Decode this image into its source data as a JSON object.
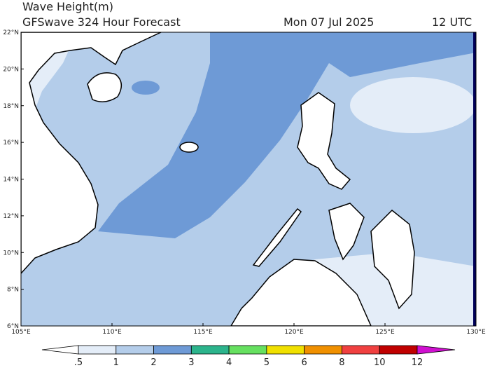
{
  "header": {
    "title": "Wave Height(m)",
    "subtitle": "GFSwave 324 Hour Forecast",
    "date": "Mon 07 Jul 2025",
    "time": "12 UTC"
  },
  "map": {
    "lat_labels": [
      "22°N",
      "20°N",
      "18°N",
      "16°N",
      "14°N",
      "12°N",
      "10°N",
      "8°N",
      "6°N"
    ],
    "lon_labels": [
      "105°E",
      "110°E",
      "115°E",
      "120°E",
      "125°E",
      "130°E"
    ]
  },
  "colorbar": {
    "labels": [
      ".5",
      "1",
      "2",
      "3",
      "4",
      "5",
      "6",
      "8",
      "10",
      "12"
    ],
    "colors": [
      "#ffffff",
      "#e4edf8",
      "#b4cdea",
      "#6e9ad6",
      "#2cb48c",
      "#66e060",
      "#f0e000",
      "#f09000",
      "#f04040",
      "#c00000",
      "#d010d0"
    ]
  }
}
